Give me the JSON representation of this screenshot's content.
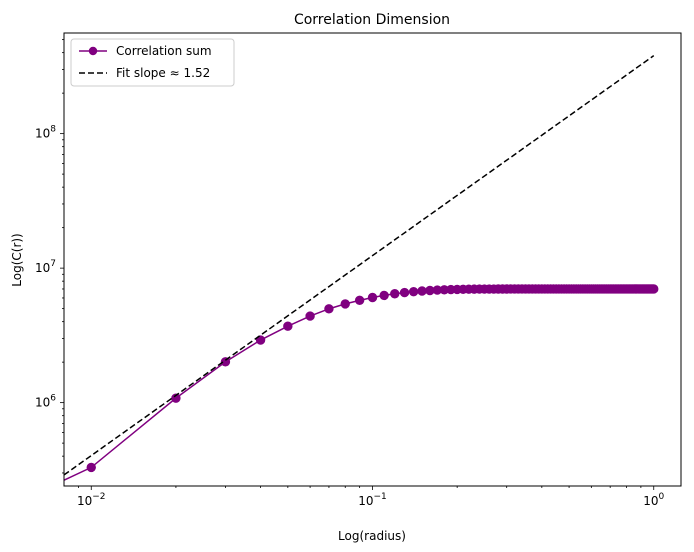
{
  "chart_data": {
    "type": "line",
    "title": "Correlation Dimension",
    "xlabel": "Log(radius)",
    "ylabel": "Log(C(r))",
    "xscale": "log",
    "yscale": "log",
    "xlim": [
      0.008,
      1.25
    ],
    "ylim": [
      240000,
      560000000
    ],
    "x_ticks": [
      {
        "value": 0.01,
        "base": "10",
        "exp": "−2"
      },
      {
        "value": 0.1,
        "base": "10",
        "exp": "−1"
      },
      {
        "value": 1,
        "base": "10",
        "exp": "0"
      }
    ],
    "y_ticks": [
      {
        "value": 1000000,
        "base": "10",
        "exp": "6"
      },
      {
        "value": 10000000,
        "base": "10",
        "exp": "7"
      },
      {
        "value": 100000000,
        "base": "10",
        "exp": "8"
      }
    ],
    "legend_position": "top-left",
    "series": [
      {
        "name": "Correlation sum",
        "color": "#800080",
        "marker": "circle",
        "style": "solid",
        "x": [
          0.01,
          0.02,
          0.03,
          0.04,
          0.05,
          0.06,
          0.07,
          0.08,
          0.09,
          0.1,
          0.11,
          0.12,
          0.13,
          0.14,
          0.15,
          0.16,
          0.17,
          0.18,
          0.19,
          0.2,
          0.21,
          0.22,
          0.23,
          0.24,
          0.25,
          0.26,
          0.27,
          0.28,
          0.29,
          0.3,
          0.31,
          0.32,
          0.33,
          0.34,
          0.35,
          0.36,
          0.37,
          0.38,
          0.39,
          0.4,
          0.41,
          0.42,
          0.43,
          0.44,
          0.45,
          0.46,
          0.47,
          0.48,
          0.49,
          0.5,
          0.51,
          0.52,
          0.53,
          0.54,
          0.55,
          0.56,
          0.57,
          0.58,
          0.59,
          0.6,
          0.61,
          0.62,
          0.63,
          0.64,
          0.65,
          0.66,
          0.67,
          0.68,
          0.69,
          0.7,
          0.71,
          0.72,
          0.73,
          0.74,
          0.75,
          0.76,
          0.77,
          0.78,
          0.79,
          0.8,
          0.81,
          0.82,
          0.83,
          0.84,
          0.85,
          0.86,
          0.87,
          0.88,
          0.89,
          0.9,
          0.91,
          0.92,
          0.93,
          0.94,
          0.95,
          0.96,
          0.97,
          0.98,
          0.99,
          1.0
        ],
        "y": [
          330000,
          1080000,
          2010000,
          2920000,
          3700000,
          4400000,
          4980000,
          5420000,
          5760000,
          6050000,
          6270000,
          6450000,
          6580000,
          6680000,
          6760000,
          6820000,
          6870000,
          6900000,
          6930000,
          6950000,
          6960000,
          6970000,
          6980000,
          6985000,
          6990000,
          6992000,
          6994000,
          6995000,
          6996000,
          6997000,
          6998000,
          6998000,
          6999000,
          6999000,
          7000000,
          7000000,
          7000000,
          7000000,
          7000000,
          7000000,
          7000000,
          7000000,
          7000000,
          7000000,
          7000000,
          7000000,
          7000000,
          7000000,
          7000000,
          7000000,
          7000000,
          7000000,
          7000000,
          7000000,
          7000000,
          7000000,
          7000000,
          7000000,
          7000000,
          7000000,
          7000000,
          7000000,
          7000000,
          7000000,
          7000000,
          7000000,
          7000000,
          7000000,
          7000000,
          7000000,
          7000000,
          7000000,
          7000000,
          7000000,
          7000000,
          7000000,
          7000000,
          7000000,
          7000000,
          7000000,
          7000000,
          7000000,
          7000000,
          7000000,
          7000000,
          7000000,
          7000000,
          7000000,
          7000000,
          7000000,
          7000000,
          7000000,
          7000000,
          7000000,
          7000000,
          7000000,
          7000000,
          7000000,
          7000000,
          7000000
        ],
        "line_extends_to": {
          "x": 0.008,
          "y": 265000
        }
      },
      {
        "name": "Fit slope ≈ 1.52",
        "color": "#000000",
        "style": "dashed",
        "x": [
          0.008,
          1.0
        ],
        "y": [
          290000,
          380000000
        ]
      }
    ]
  }
}
